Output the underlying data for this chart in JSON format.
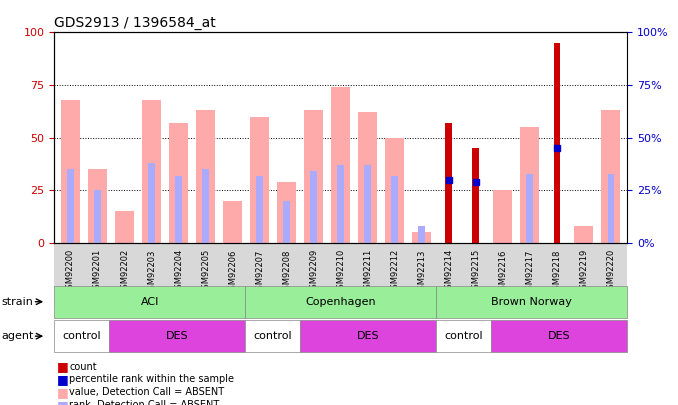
{
  "title": "GDS2913 / 1396584_at",
  "samples": [
    "GSM92200",
    "GSM92201",
    "GSM92202",
    "GSM92203",
    "GSM92204",
    "GSM92205",
    "GSM92206",
    "GSM92207",
    "GSM92208",
    "GSM92209",
    "GSM92210",
    "GSM92211",
    "GSM92212",
    "GSM92213",
    "GSM92214",
    "GSM92215",
    "GSM92216",
    "GSM92217",
    "GSM92218",
    "GSM92219",
    "GSM92220"
  ],
  "value_absent": [
    68,
    35,
    15,
    68,
    57,
    63,
    20,
    60,
    29,
    63,
    74,
    62,
    50,
    5,
    0,
    0,
    25,
    55,
    0,
    8,
    63
  ],
  "rank_absent": [
    35,
    25,
    0,
    38,
    32,
    35,
    0,
    32,
    20,
    34,
    37,
    37,
    32,
    8,
    0,
    0,
    0,
    33,
    0,
    0,
    33
  ],
  "count": [
    0,
    0,
    0,
    0,
    0,
    0,
    0,
    0,
    0,
    0,
    0,
    0,
    0,
    0,
    57,
    45,
    0,
    0,
    95,
    0,
    0
  ],
  "percentile_rank": [
    0,
    0,
    0,
    0,
    0,
    0,
    0,
    0,
    0,
    0,
    0,
    0,
    0,
    0,
    30,
    29,
    0,
    0,
    45,
    0,
    0
  ],
  "strains": [
    {
      "label": "ACI",
      "start": 0,
      "end": 7
    },
    {
      "label": "Copenhagen",
      "start": 7,
      "end": 14
    },
    {
      "label": "Brown Norway",
      "start": 14,
      "end": 21
    }
  ],
  "agents": [
    {
      "label": "control",
      "start": 0,
      "end": 2,
      "color": "#ffffff"
    },
    {
      "label": "DES",
      "start": 2,
      "end": 7,
      "color": "#dd44dd"
    },
    {
      "label": "control",
      "start": 7,
      "end": 9,
      "color": "#ffffff"
    },
    {
      "label": "DES",
      "start": 9,
      "end": 14,
      "color": "#dd44dd"
    },
    {
      "label": "control",
      "start": 14,
      "end": 16,
      "color": "#ffffff"
    },
    {
      "label": "DES",
      "start": 16,
      "end": 21,
      "color": "#dd44dd"
    }
  ],
  "ylim": [
    0,
    100
  ],
  "yticks": [
    0,
    25,
    50,
    75,
    100
  ],
  "color_value_absent": "#ffaaaa",
  "color_rank_absent": "#aaaaff",
  "color_count": "#cc0000",
  "color_percentile": "#0000cc",
  "left_axis_color": "#cc0000",
  "right_axis_color": "#0000cc",
  "strain_color": "#99ee99",
  "legend_items": [
    {
      "color": "#cc0000",
      "label": "count"
    },
    {
      "color": "#0000cc",
      "label": "percentile rank within the sample"
    },
    {
      "color": "#ffaaaa",
      "label": "value, Detection Call = ABSENT"
    },
    {
      "color": "#aaaaff",
      "label": "rank, Detection Call = ABSENT"
    }
  ]
}
